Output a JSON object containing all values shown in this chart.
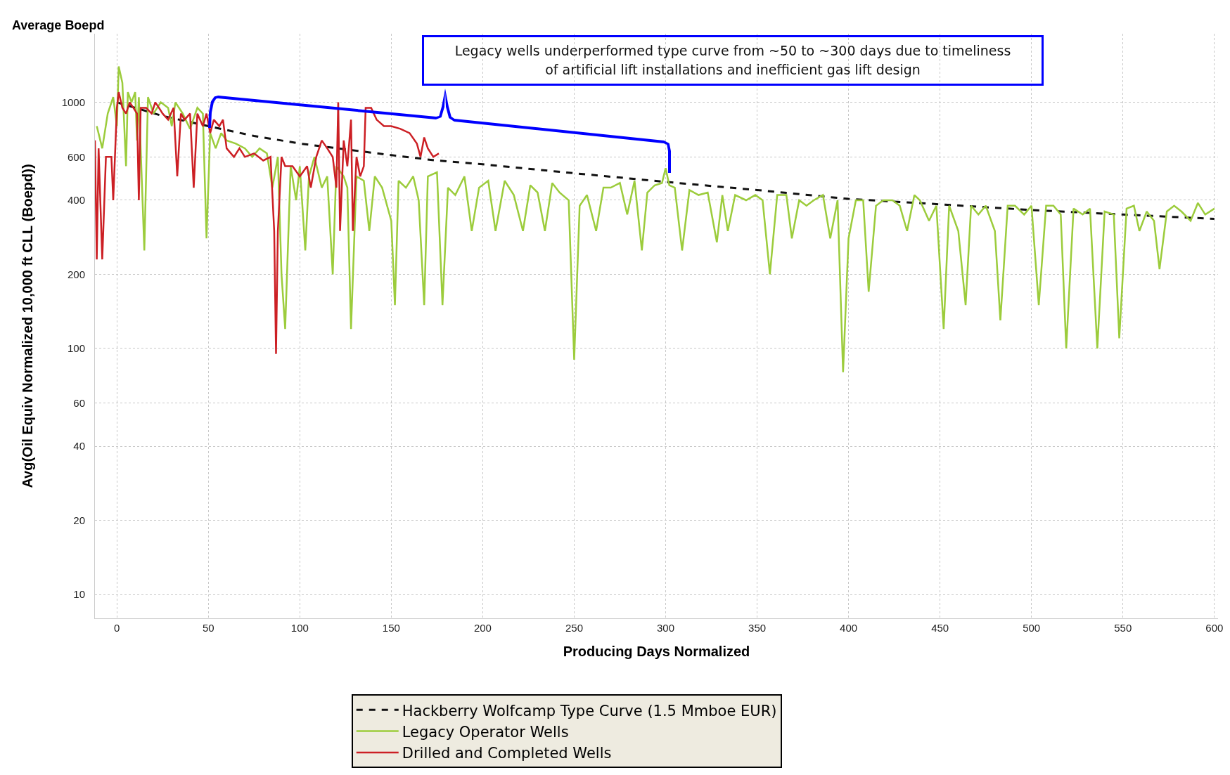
{
  "chart_data": {
    "type": "line",
    "title": "Average Boepd",
    "xlabel": "Producing Days Normalized",
    "ylabel": "Avg(Oil Equiv Normalized 10,000 ft CLL (Boepd))",
    "annotations": [
      "Legacy wells underperformed type curve from ~50 to ~300 days due to timeliness of artificial lift installations and inefficient gas lift design"
    ],
    "log": "y",
    "grid": true,
    "legend": "bottom",
    "marker": "none",
    "xlim": [
      -12,
      602
    ],
    "xticks": [
      0,
      50,
      100,
      150,
      200,
      250,
      300,
      350,
      400,
      450,
      500,
      550,
      600
    ],
    "ylim": [
      8,
      1900
    ],
    "yticks": [
      10,
      20,
      40,
      60,
      100,
      200,
      400,
      600,
      1000
    ],
    "series": [
      {
        "name": "Hackberry Wolfcamp Type Curve (1.5 Mmboe EUR)",
        "color": "#111111",
        "line_style": "dashed",
        "x": [
          0,
          25,
          50,
          75,
          100,
          150,
          175,
          200,
          250,
          300,
          350,
          400,
          450,
          500,
          550,
          600
        ],
        "values": [
          1000,
          880,
          800,
          730,
          680,
          610,
          580,
          560,
          515,
          475,
          440,
          405,
          385,
          365,
          350,
          336
        ]
      },
      {
        "name": "Legacy Operator Wells",
        "color": "#9ccc3c",
        "line_style": "solid",
        "x": [
          -11,
          -8,
          -5,
          -2,
          0,
          1,
          3,
          5,
          6,
          8,
          10,
          11,
          12,
          15,
          17,
          20,
          24,
          28,
          30,
          32,
          36,
          40,
          44,
          47,
          49,
          51,
          54,
          57,
          60,
          65,
          70,
          74,
          78,
          82,
          85,
          88,
          90,
          92,
          95,
          98,
          100,
          103,
          105,
          108,
          112,
          115,
          118,
          120,
          124,
          126,
          128,
          131,
          135,
          138,
          141,
          145,
          150,
          152,
          154,
          158,
          162,
          165,
          168,
          170,
          175,
          178,
          181,
          185,
          190,
          194,
          198,
          203,
          207,
          212,
          217,
          222,
          226,
          230,
          234,
          238,
          242,
          247,
          250,
          253,
          257,
          262,
          266,
          270,
          275,
          279,
          283,
          287,
          290,
          294,
          298,
          300,
          302,
          305,
          309,
          313,
          318,
          323,
          328,
          331,
          334,
          338,
          344,
          349,
          353,
          357,
          361,
          366,
          369,
          373,
          377,
          381,
          386,
          390,
          394,
          397,
          400,
          404,
          408,
          411,
          415,
          419,
          424,
          428,
          432,
          436,
          439,
          444,
          448,
          452,
          455,
          460,
          464,
          467,
          471,
          475,
          480,
          483,
          487,
          491,
          496,
          500,
          504,
          508,
          512,
          516,
          519,
          523,
          528,
          532,
          536,
          540,
          545,
          548,
          552,
          556,
          559,
          563,
          567,
          570,
          574,
          578,
          582,
          587,
          591,
          595,
          600
        ],
        "values": [
          800,
          650,
          900,
          1050,
          800,
          1400,
          1200,
          550,
          1100,
          1000,
          1100,
          700,
          1050,
          250,
          1050,
          900,
          1000,
          950,
          800,
          1000,
          900,
          780,
          950,
          900,
          280,
          750,
          650,
          750,
          700,
          680,
          650,
          600,
          650,
          620,
          450,
          600,
          200,
          120,
          550,
          400,
          550,
          250,
          500,
          600,
          450,
          500,
          200,
          550,
          500,
          450,
          120,
          500,
          480,
          300,
          500,
          450,
          330,
          150,
          480,
          450,
          500,
          400,
          150,
          500,
          520,
          150,
          450,
          420,
          500,
          300,
          450,
          480,
          300,
          480,
          420,
          300,
          460,
          430,
          300,
          470,
          430,
          400,
          90,
          380,
          420,
          300,
          450,
          450,
          470,
          350,
          480,
          250,
          430,
          460,
          470,
          540,
          460,
          450,
          250,
          440,
          420,
          430,
          270,
          420,
          300,
          420,
          400,
          420,
          400,
          200,
          420,
          420,
          280,
          400,
          380,
          400,
          420,
          280,
          400,
          80,
          280,
          400,
          400,
          170,
          380,
          400,
          400,
          380,
          300,
          420,
          400,
          330,
          380,
          120,
          380,
          300,
          150,
          380,
          350,
          380,
          300,
          130,
          380,
          380,
          350,
          380,
          150,
          380,
          380,
          350,
          100,
          370,
          350,
          370,
          100,
          360,
          350,
          110,
          370,
          380,
          300,
          360,
          330,
          210,
          360,
          380,
          360,
          330,
          390,
          350,
          370
        ]
      },
      {
        "name": "Drilled and Completed Wells",
        "color": "#cc1f24",
        "line_style": "solid",
        "x": [
          -12,
          -11,
          -10,
          -8,
          -6,
          -3,
          -2,
          0,
          1,
          3,
          5,
          7,
          9,
          11,
          12,
          13,
          16,
          19,
          21,
          23,
          25,
          28,
          31,
          33,
          35,
          37,
          40,
          42,
          44,
          47,
          49,
          51,
          53,
          56,
          58,
          60,
          64,
          67,
          70,
          75,
          80,
          84,
          86,
          87,
          88,
          90,
          92,
          96,
          100,
          104,
          106,
          109,
          112,
          115,
          118,
          120,
          121,
          122,
          124,
          126,
          128,
          129,
          131,
          133,
          135,
          136,
          139,
          142,
          146,
          150,
          155,
          160,
          164,
          166,
          168,
          170,
          173,
          176
        ],
        "values": [
          700,
          230,
          650,
          230,
          600,
          600,
          400,
          950,
          1100,
          950,
          900,
          1000,
          950,
          900,
          400,
          950,
          950,
          900,
          1000,
          950,
          900,
          850,
          950,
          500,
          900,
          850,
          900,
          450,
          900,
          800,
          900,
          750,
          850,
          800,
          850,
          650,
          600,
          650,
          600,
          620,
          580,
          600,
          300,
          95,
          300,
          600,
          550,
          550,
          500,
          550,
          450,
          600,
          700,
          650,
          600,
          450,
          1000,
          300,
          700,
          550,
          850,
          300,
          600,
          500,
          550,
          950,
          950,
          850,
          800,
          800,
          780,
          750,
          680,
          600,
          720,
          650,
          600,
          620
        ]
      }
    ]
  }
}
